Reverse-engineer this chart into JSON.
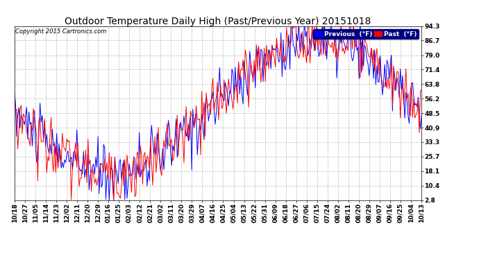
{
  "title": "Outdoor Temperature Daily High (Past/Previous Year) 20151018",
  "copyright": "Copyright 2015 Cartronics.com",
  "legend_previous": "Previous  (°F)",
  "legend_past": "Past  (°F)",
  "yticks": [
    2.8,
    10.4,
    18.1,
    25.7,
    33.3,
    40.9,
    48.5,
    56.2,
    63.8,
    71.4,
    79.0,
    86.7,
    94.3
  ],
  "ylim": [
    2.8,
    94.3
  ],
  "color_previous": "blue",
  "color_past": "red",
  "xtick_labels": [
    "10/18",
    "10/27",
    "11/05",
    "11/14",
    "11/23",
    "12/02",
    "12/11",
    "12/20",
    "12/29",
    "01/16",
    "01/25",
    "02/03",
    "02/12",
    "02/21",
    "03/02",
    "03/11",
    "03/20",
    "03/29",
    "04/07",
    "04/16",
    "04/25",
    "05/04",
    "05/13",
    "05/22",
    "05/31",
    "06/09",
    "06/18",
    "06/27",
    "07/06",
    "07/15",
    "07/24",
    "08/02",
    "08/11",
    "08/20",
    "08/29",
    "09/07",
    "09/16",
    "09/25",
    "10/04",
    "10/13"
  ],
  "background_color": "#ffffff",
  "grid_color": "#aaaaaa",
  "title_fontsize": 10,
  "tick_fontsize": 6.5,
  "copyright_fontsize": 6,
  "linewidth": 0.7
}
